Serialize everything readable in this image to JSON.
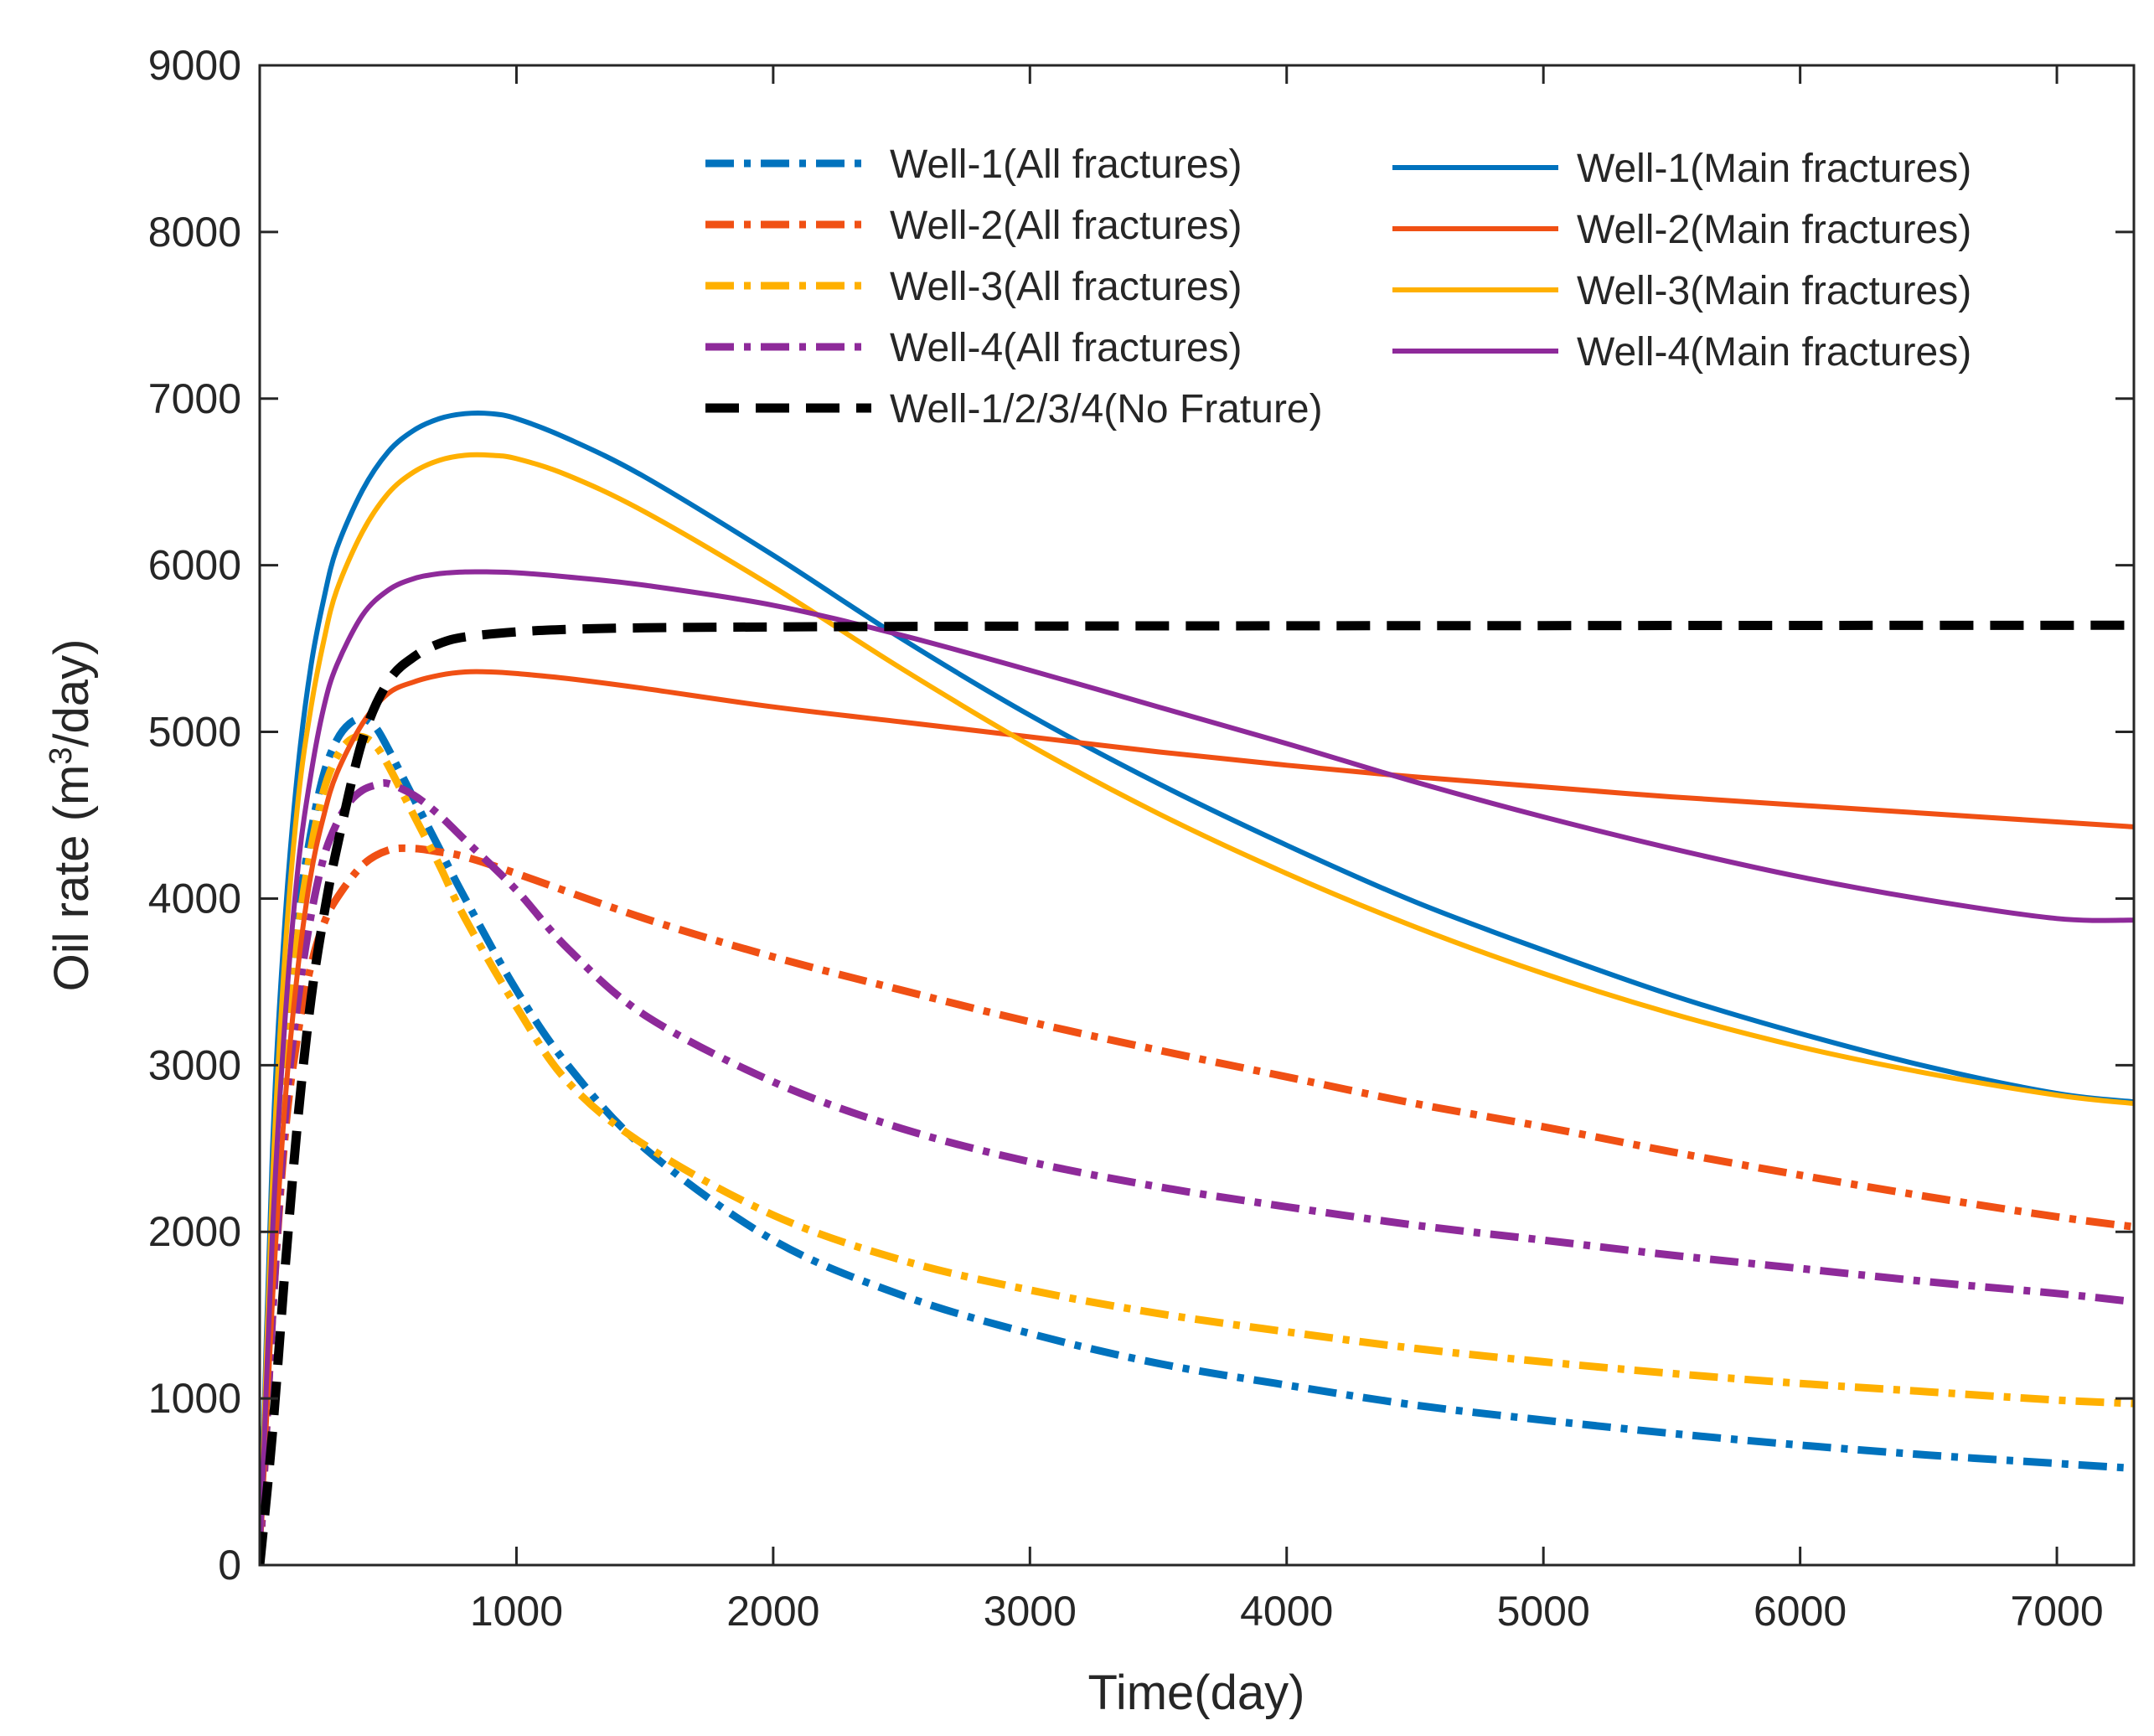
{
  "chart_data": {
    "type": "line",
    "title": "",
    "xlabel": "Time(day)",
    "ylabel_parts": {
      "prefix": "Oil rate (m",
      "superscript": "3",
      "suffix": "/day)"
    },
    "xlim": [
      0,
      7300
    ],
    "ylim": [
      0,
      9000
    ],
    "xticks": [
      1000,
      2000,
      3000,
      4000,
      5000,
      6000,
      7000
    ],
    "yticks": [
      0,
      1000,
      2000,
      3000,
      4000,
      5000,
      6000,
      7000,
      8000,
      9000
    ],
    "xtick_labels": [
      "1000",
      "2000",
      "3000",
      "4000",
      "5000",
      "6000",
      "7000"
    ],
    "ytick_labels": [
      "0",
      "1000",
      "2000",
      "3000",
      "4000",
      "5000",
      "6000",
      "7000",
      "8000",
      "9000"
    ],
    "grid": false,
    "legend_position": "top-right",
    "series": [
      {
        "name": "Well-1(All fractures)",
        "color": "#0072BD",
        "style": "dashdot",
        "x": [
          0,
          50,
          100,
          150,
          200,
          250,
          300,
          350,
          400,
          450,
          500,
          600,
          700,
          800,
          1000,
          1200,
          1500,
          2000,
          2500,
          3000,
          3500,
          4000,
          4500,
          5000,
          5500,
          6000,
          6500,
          7000,
          7300
        ],
        "y": [
          0,
          1900,
          3100,
          3900,
          4400,
          4750,
          4950,
          5050,
          5080,
          5030,
          4900,
          4600,
          4300,
          4000,
          3450,
          3000,
          2500,
          1950,
          1620,
          1390,
          1210,
          1080,
          960,
          870,
          790,
          720,
          660,
          610,
          580
        ]
      },
      {
        "name": "Well-2(All fractures)",
        "color": "#F05014",
        "style": "dashdot",
        "x": [
          0,
          50,
          100,
          150,
          200,
          250,
          300,
          400,
          500,
          600,
          700,
          800,
          1000,
          1500,
          2000,
          2500,
          3000,
          3500,
          4000,
          4500,
          5000,
          5500,
          6000,
          6500,
          7000,
          7300
        ],
        "y": [
          0,
          1500,
          2600,
          3200,
          3600,
          3850,
          4000,
          4200,
          4290,
          4300,
          4280,
          4250,
          4150,
          3880,
          3650,
          3450,
          3260,
          3090,
          2930,
          2770,
          2630,
          2480,
          2340,
          2210,
          2090,
          2030
        ]
      },
      {
        "name": "Well-3(All fractures)",
        "color": "#FFB000",
        "style": "dashdot",
        "x": [
          0,
          50,
          100,
          150,
          200,
          250,
          300,
          350,
          400,
          450,
          500,
          600,
          700,
          800,
          1000,
          1200,
          1500,
          2000,
          2500,
          3000,
          3500,
          4000,
          4500,
          5000,
          5500,
          6000,
          6500,
          7000,
          7300
        ],
        "y": [
          0,
          1800,
          3000,
          3800,
          4300,
          4650,
          4850,
          4950,
          4970,
          4920,
          4800,
          4500,
          4200,
          3880,
          3350,
          2900,
          2520,
          2100,
          1830,
          1650,
          1510,
          1400,
          1300,
          1220,
          1150,
          1090,
          1040,
          990,
          970
        ]
      },
      {
        "name": "Well-4(All fractures)",
        "color": "#8E2A9A",
        "style": "dashdot",
        "x": [
          0,
          50,
          100,
          150,
          200,
          250,
          300,
          350,
          400,
          450,
          500,
          600,
          700,
          800,
          1000,
          1200,
          1500,
          2000,
          2500,
          3000,
          3500,
          4000,
          4500,
          5000,
          5500,
          6000,
          6500,
          7000,
          7300
        ],
        "y": [
          0,
          1500,
          2700,
          3400,
          3900,
          4250,
          4450,
          4580,
          4650,
          4680,
          4690,
          4620,
          4500,
          4350,
          4050,
          3700,
          3300,
          2900,
          2620,
          2420,
          2270,
          2150,
          2040,
          1950,
          1860,
          1780,
          1700,
          1630,
          1580
        ]
      },
      {
        "name": "Well-1/2/3/4(No Frature)",
        "color": "#000000",
        "style": "dashed",
        "x": [
          0,
          50,
          100,
          150,
          200,
          250,
          300,
          400,
          500,
          600,
          700,
          800,
          1000,
          1200,
          1500,
          2000,
          3000,
          4000,
          5000,
          6000,
          7300
        ],
        "y": [
          0,
          800,
          1800,
          2700,
          3400,
          3900,
          4300,
          4950,
          5300,
          5450,
          5530,
          5570,
          5600,
          5615,
          5625,
          5630,
          5635,
          5637,
          5638,
          5639,
          5640
        ]
      },
      {
        "name": "Well-1(Main fractures)",
        "color": "#0072BD",
        "style": "solid",
        "x": [
          0,
          50,
          100,
          150,
          200,
          250,
          300,
          400,
          500,
          600,
          700,
          800,
          900,
          1000,
          1200,
          1500,
          2000,
          2500,
          3000,
          3500,
          4000,
          4500,
          5000,
          5500,
          6000,
          6500,
          7000,
          7300
        ],
        "y": [
          0,
          2500,
          3900,
          4800,
          5400,
          5800,
          6100,
          6450,
          6680,
          6810,
          6880,
          6910,
          6910,
          6880,
          6760,
          6530,
          6060,
          5560,
          5100,
          4690,
          4320,
          3980,
          3690,
          3420,
          3190,
          2990,
          2830,
          2780
        ]
      },
      {
        "name": "Well-2(Main fractures)",
        "color": "#F05014",
        "style": "solid",
        "x": [
          0,
          50,
          100,
          150,
          200,
          250,
          300,
          400,
          500,
          600,
          700,
          800,
          900,
          1000,
          1200,
          1500,
          2000,
          2500,
          3000,
          3500,
          4000,
          4500,
          5000,
          5500,
          6000,
          6500,
          7000,
          7300
        ],
        "y": [
          0,
          1600,
          2800,
          3600,
          4150,
          4500,
          4750,
          5050,
          5230,
          5300,
          5340,
          5360,
          5360,
          5350,
          5320,
          5260,
          5150,
          5060,
          4970,
          4880,
          4800,
          4730,
          4670,
          4610,
          4560,
          4510,
          4460,
          4430
        ]
      },
      {
        "name": "Well-3(Main fractures)",
        "color": "#FFB000",
        "style": "solid",
        "x": [
          0,
          50,
          100,
          150,
          200,
          250,
          300,
          400,
          500,
          600,
          700,
          800,
          900,
          1000,
          1200,
          1500,
          2000,
          2500,
          3000,
          3500,
          4000,
          4500,
          5000,
          5500,
          6000,
          6500,
          7000,
          7300
        ],
        "y": [
          0,
          2300,
          3700,
          4600,
          5150,
          5550,
          5850,
          6200,
          6430,
          6560,
          6630,
          6660,
          6660,
          6640,
          6540,
          6320,
          5870,
          5380,
          4920,
          4510,
          4150,
          3830,
          3550,
          3310,
          3110,
          2950,
          2820,
          2770
        ]
      },
      {
        "name": "Well-4(Main fractures)",
        "color": "#8E2A9A",
        "style": "solid",
        "x": [
          0,
          50,
          100,
          150,
          200,
          250,
          300,
          400,
          500,
          600,
          700,
          800,
          900,
          1000,
          1200,
          1500,
          2000,
          2500,
          3000,
          3500,
          4000,
          4500,
          5000,
          5500,
          6000,
          6500,
          7000,
          7300
        ],
        "y": [
          0,
          2000,
          3300,
          4200,
          4750,
          5150,
          5400,
          5700,
          5850,
          5920,
          5950,
          5960,
          5960,
          5955,
          5930,
          5880,
          5760,
          5580,
          5370,
          5150,
          4930,
          4700,
          4490,
          4300,
          4130,
          3990,
          3880,
          3870
        ]
      }
    ]
  }
}
